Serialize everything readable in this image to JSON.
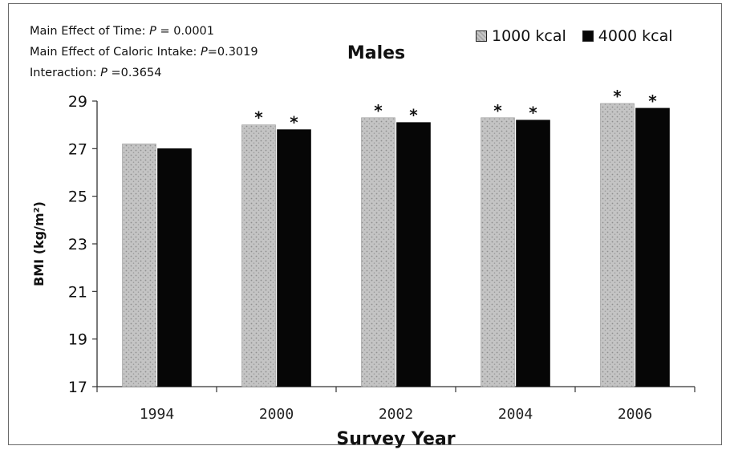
{
  "stats": {
    "time_prefix": "Main Effect of Time: ",
    "time_p": "P",
    "time_value": " = 0.0001",
    "caloric_prefix": "Main Effect of Caloric Intake: ",
    "caloric_p": "P",
    "caloric_value": "=0.3019",
    "interaction_prefix": "Interaction: ",
    "interaction_p": "P",
    "interaction_value": " =0.3654"
  },
  "chart_data": {
    "type": "bar",
    "title": "Males",
    "xlabel": "Survey Year",
    "ylabel": "BMI (kg/m²)",
    "ylim": [
      17,
      29
    ],
    "yticks": [
      17,
      19,
      21,
      23,
      25,
      27,
      29
    ],
    "categories": [
      "1994",
      "2000",
      "2002",
      "2004",
      "2006"
    ],
    "series": [
      {
        "name": "1000 kcal",
        "color": "#bdbdbd",
        "values": [
          27.2,
          28.0,
          28.3,
          28.3,
          28.9
        ]
      },
      {
        "name": "4000 kcal",
        "color": "#060606",
        "values": [
          27.0,
          27.8,
          28.1,
          28.2,
          28.7
        ]
      }
    ],
    "significance_marker": "*",
    "significant": [
      [
        false,
        true,
        true,
        true,
        true
      ],
      [
        false,
        true,
        true,
        true,
        true
      ]
    ],
    "legend_position": "top-right",
    "grid": false
  }
}
